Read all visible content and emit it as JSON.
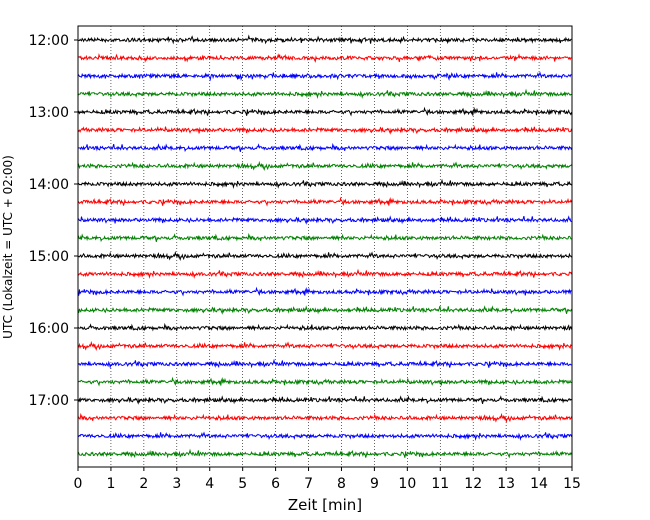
{
  "chart_data": {
    "type": "line",
    "title": "",
    "xlabel": "Zeit  [min]",
    "ylabel": "UTC (Lokalzeit = UTC + 02:00)",
    "xlim": [
      0,
      15
    ],
    "xticks": [
      0,
      1,
      2,
      3,
      4,
      5,
      6,
      7,
      8,
      9,
      10,
      11,
      12,
      13,
      14,
      15
    ],
    "ytick_labels": [
      "12:00",
      "13:00",
      "14:00",
      "15:00",
      "16:00",
      "17:00"
    ],
    "grid": "vertical dotted",
    "trace_interval_min": 15,
    "trace_colors": [
      "#000000",
      "#ff0000",
      "#0000ff",
      "#008000"
    ],
    "traces": [
      "12:00",
      "12:15",
      "12:30",
      "12:45",
      "13:00",
      "13:15",
      "13:30",
      "13:45",
      "14:00",
      "14:15",
      "14:30",
      "14:45",
      "15:00",
      "15:15",
      "15:30",
      "15:45",
      "16:00",
      "16:15",
      "16:30",
      "16:45",
      "17:00",
      "17:15",
      "17:30",
      "17:45"
    ]
  }
}
